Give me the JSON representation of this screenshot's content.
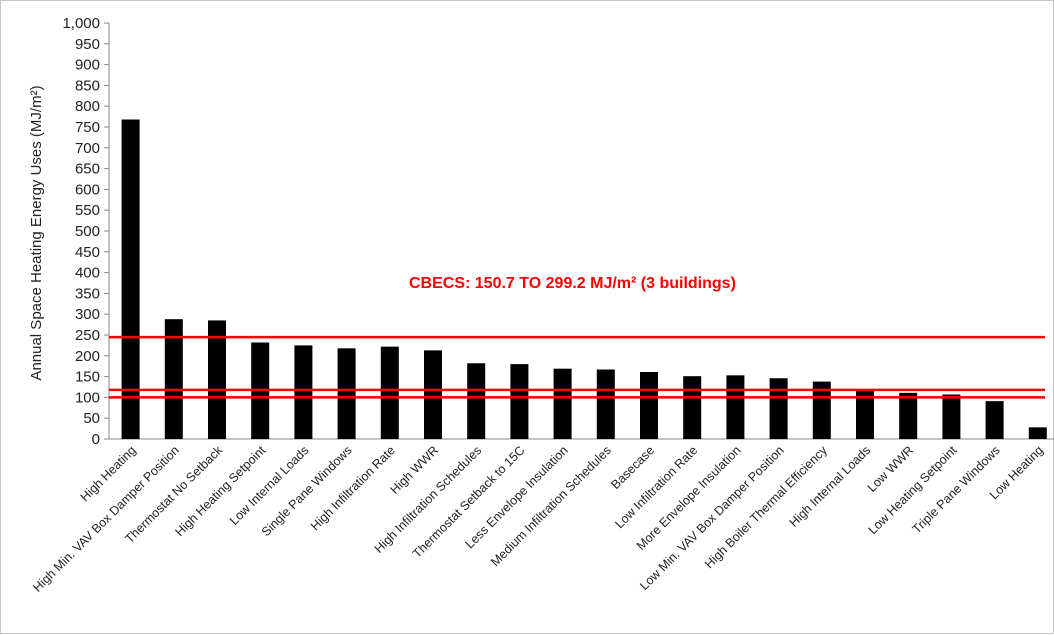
{
  "chart_data": {
    "type": "bar",
    "ylabel": "Annual Space Heating Energy Uses (MJ/m²)",
    "ylim": [
      0,
      1000
    ],
    "yticks": [
      "0",
      "50",
      "100",
      "150",
      "200",
      "250",
      "300",
      "350",
      "400",
      "450",
      "500",
      "550",
      "600",
      "650",
      "700",
      "750",
      "800",
      "850",
      "900",
      "950",
      "1,000"
    ],
    "categories": [
      "High Heating",
      "High Min. VAV Box Damper Position",
      "Thermostat No Setback",
      "High Heating Setpoint",
      "Low Internal Loads",
      "Single Pane Windows",
      "High Infiltration Rate",
      "High WWR",
      "High Infiltration Schedules",
      "Thermostat Setback to 15C",
      "Less Envelope Insulation",
      "Medium Infiltration Schedules",
      "Basecase",
      "Low Infiltration Rate",
      "More Envelope Insulation",
      "Low Min. VAV Box Damper Position",
      "High Boiler Thermal Efficiency",
      "High Internal Loads",
      "Low WWR",
      "Low Heating Setpoint",
      "Triple Pane Windows",
      "Low Heating"
    ],
    "values": [
      768,
      288,
      285,
      232,
      225,
      218,
      222,
      213,
      182,
      180,
      169,
      167,
      161,
      151,
      153,
      146,
      138,
      117,
      111,
      107,
      91,
      28
    ],
    "bar_color": "#000000",
    "reference_lines": [
      245,
      118,
      100
    ],
    "reference_color": "#ff0000",
    "annotation": "CBECS: 150.7 TO 299.2 MJ/m² (3 buildings)",
    "grid": false
  }
}
